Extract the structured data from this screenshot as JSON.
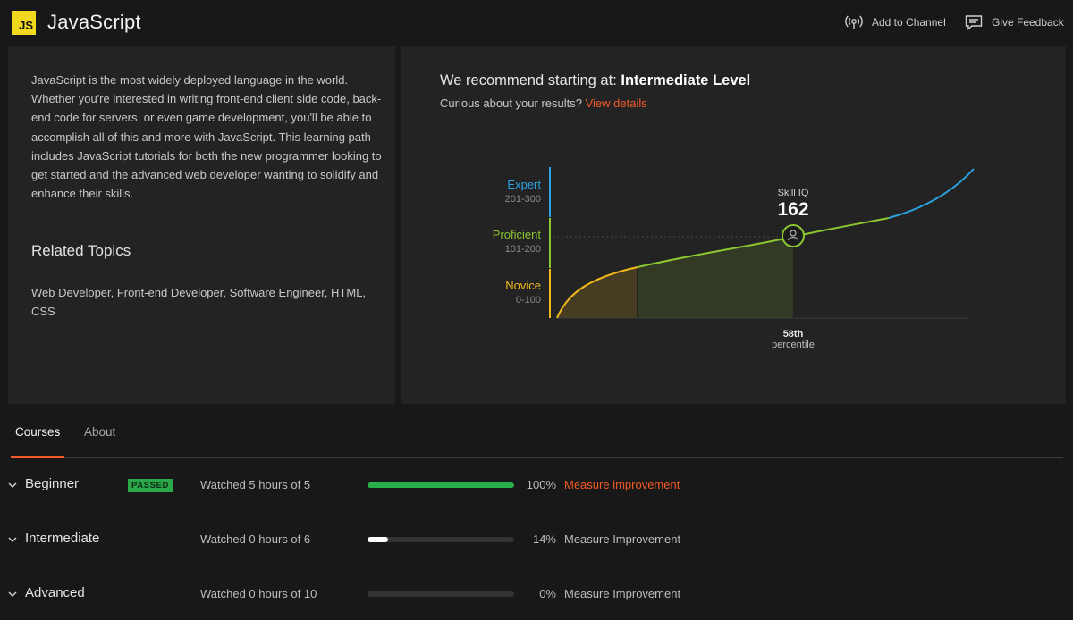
{
  "header": {
    "logo_text": "JS",
    "title": "JavaScript",
    "add_channel_label": "Add to Channel",
    "add_channel_icon": "broadcast-icon",
    "feedback_label": "Give Feedback",
    "feedback_icon": "comment-icon"
  },
  "about": {
    "description": "JavaScript is the most widely deployed language in the world. Whether you're interested in writing front-end client side code, back-end code for servers, or even game development, you'll be able to accomplish all of this and more with JavaScript. This learning path includes JavaScript tutorials for both the new programmer looking to get started and the advanced web developer wanting to solidify and enhance their skills.",
    "related_title": "Related Topics",
    "related_list": "Web Developer, Front-end Developer, Software Engineer, HTML, CSS"
  },
  "recommendation": {
    "prefix": "We recommend starting at:",
    "level": "Intermediate Level",
    "curious_text": "Curious about your results?",
    "details_link": "View details"
  },
  "skill_chart": {
    "levels": [
      {
        "name": "Expert",
        "range": "201-300",
        "color": "#2aa3e0"
      },
      {
        "name": "Proficient",
        "range": "101-200",
        "color": "#8bc62f"
      },
      {
        "name": "Novice",
        "range": "0-100",
        "color": "#f2b91c"
      }
    ],
    "score_label": "Skill IQ",
    "score": "162",
    "percentile_value": "58th",
    "percentile_label": "percentile"
  },
  "tabs": [
    {
      "label": "Courses",
      "active": true
    },
    {
      "label": "About",
      "active": false
    }
  ],
  "courses": [
    {
      "level": "Beginner",
      "badge": "PASSED",
      "watched": "Watched 5 hours of 5",
      "progress": 1.0,
      "bar_color": "#2ab04a",
      "percent": "100%",
      "action": "Measure improvement",
      "accent": true
    },
    {
      "level": "Intermediate",
      "badge": "",
      "watched": "Watched 0 hours of 6",
      "progress": 0.14,
      "bar_color": "#ffffff",
      "percent": "14%",
      "action": "Measure Improvement",
      "accent": false
    },
    {
      "level": "Advanced",
      "badge": "",
      "watched": "Watched 0 hours of 10",
      "progress": 0.0,
      "bar_color": "#ffffff",
      "percent": "0%",
      "action": "Measure Improvement",
      "accent": false
    }
  ]
}
